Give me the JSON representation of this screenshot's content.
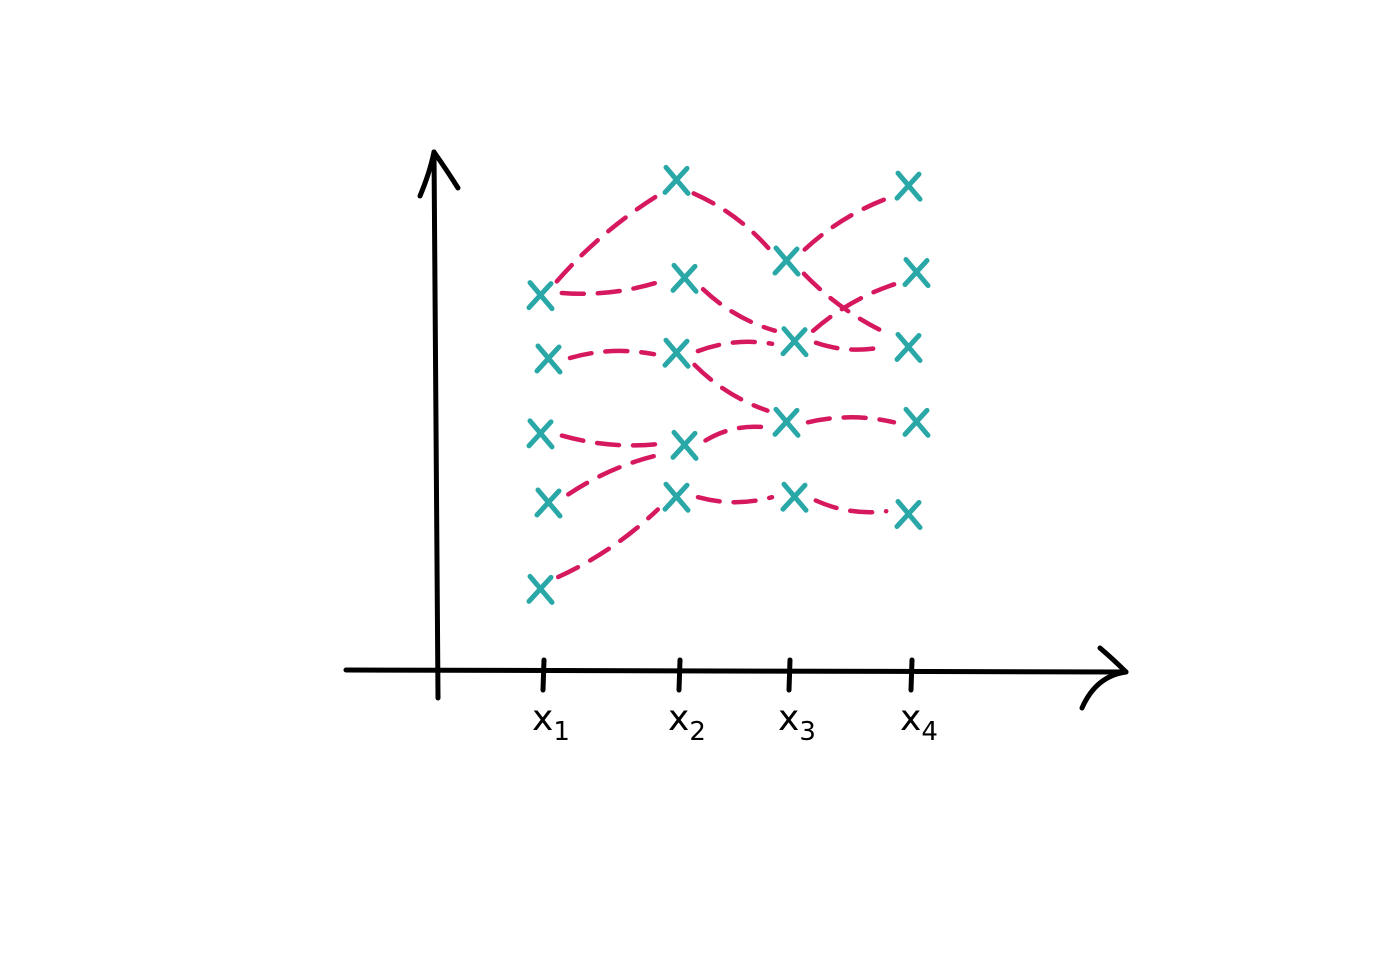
{
  "chart_data": {
    "type": "scatter",
    "title": "",
    "xlabel": "",
    "ylabel": "",
    "categories": [
      {
        "main": "x",
        "sub": "1"
      },
      {
        "main": "x",
        "sub": "2"
      },
      {
        "main": "x",
        "sub": "3"
      },
      {
        "main": "x",
        "sub": "4"
      }
    ],
    "x_positions": [
      1,
      2,
      3,
      4
    ],
    "xlim": [
      0,
      5
    ],
    "ylim": [
      0,
      10
    ],
    "points": [
      [
        {
          "x": 1,
          "y": 6.5
        },
        {
          "x": 1,
          "y": 5.4
        },
        {
          "x": 1,
          "y": 4.1
        },
        {
          "x": 1,
          "y": 2.9
        },
        {
          "x": 1,
          "y": 1.4
        }
      ],
      [
        {
          "x": 2,
          "y": 8.5
        },
        {
          "x": 2,
          "y": 6.8
        },
        {
          "x": 2,
          "y": 5.5
        },
        {
          "x": 2,
          "y": 3.9
        },
        {
          "x": 2,
          "y": 3.0
        }
      ],
      [
        {
          "x": 3,
          "y": 7.1
        },
        {
          "x": 3,
          "y": 5.7
        },
        {
          "x": 3,
          "y": 4.3
        },
        {
          "x": 3,
          "y": 3.0
        }
      ],
      [
        {
          "x": 4,
          "y": 8.4
        },
        {
          "x": 4,
          "y": 6.9
        },
        {
          "x": 4,
          "y": 5.6
        },
        {
          "x": 4,
          "y": 4.3
        },
        {
          "x": 4,
          "y": 2.7
        }
      ]
    ],
    "links": [
      [
        [
          0,
          0
        ],
        [
          1,
          0
        ]
      ],
      [
        [
          0,
          0
        ],
        [
          1,
          1
        ]
      ],
      [
        [
          0,
          1
        ],
        [
          1,
          2
        ]
      ],
      [
        [
          0,
          2
        ],
        [
          1,
          3
        ]
      ],
      [
        [
          0,
          3
        ],
        [
          1,
          3
        ]
      ],
      [
        [
          0,
          4
        ],
        [
          1,
          4
        ]
      ],
      [
        [
          1,
          0
        ],
        [
          2,
          0
        ]
      ],
      [
        [
          1,
          1
        ],
        [
          2,
          1
        ]
      ],
      [
        [
          1,
          2
        ],
        [
          2,
          1
        ]
      ],
      [
        [
          1,
          2
        ],
        [
          2,
          2
        ]
      ],
      [
        [
          1,
          3
        ],
        [
          2,
          2
        ]
      ],
      [
        [
          1,
          4
        ],
        [
          2,
          3
        ]
      ],
      [
        [
          2,
          0
        ],
        [
          3,
          0
        ]
      ],
      [
        [
          2,
          0
        ],
        [
          3,
          2
        ]
      ],
      [
        [
          2,
          1
        ],
        [
          3,
          1
        ]
      ],
      [
        [
          2,
          1
        ],
        [
          3,
          2
        ]
      ],
      [
        [
          2,
          2
        ],
        [
          3,
          3
        ]
      ],
      [
        [
          2,
          3
        ],
        [
          3,
          4
        ]
      ]
    ],
    "grid": false,
    "legend": "none",
    "colors": {
      "marker": "#2aa7a7",
      "link": "#d6185e",
      "axis": "#000000"
    }
  }
}
